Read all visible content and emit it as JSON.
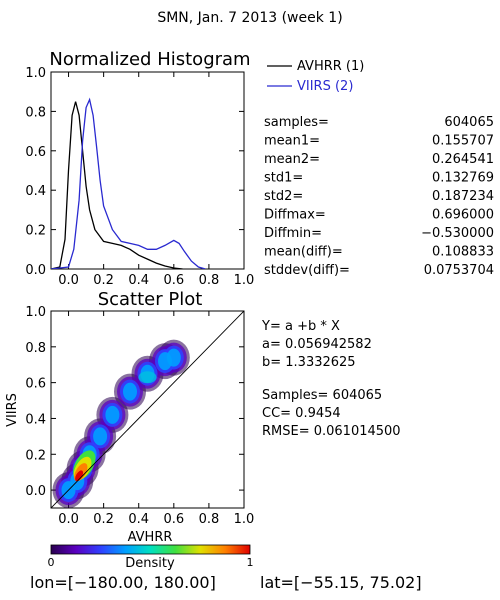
{
  "figure": {
    "title": "SMN,  Jan. 7 2013 (week 1)",
    "footer_lon": "lon=[−180.00, 180.00]",
    "footer_lat": "lat=[−55.15, 75.02]"
  },
  "histogram_legend": [
    {
      "label": "AVHRR (1)",
      "color": "#000000"
    },
    {
      "label": "VIIRS (2)",
      "color": "#2a2ad0"
    }
  ],
  "histogram_stats": [
    {
      "label": "samples=",
      "value": "604065"
    },
    {
      "label": "mean1=",
      "value": "0.155707"
    },
    {
      "label": "mean2=",
      "value": "0.264541"
    },
    {
      "label": "std1=",
      "value": "0.132769"
    },
    {
      "label": "std2=",
      "value": "0.187234"
    },
    {
      "label": "Diffmax=",
      "value": "0.696000"
    },
    {
      "label": "Diffmin=",
      "value": "−0.530000"
    },
    {
      "label": "mean(diff)=",
      "value": "0.108833"
    },
    {
      "label": "stddev(diff)=",
      "value": "0.0753704"
    }
  ],
  "scatter_stats": {
    "model": "Y=  a  +b  *  X",
    "a": "a=  0.056942582",
    "b": "b=  1.3332625",
    "samples": "Samples=  604065",
    "cc": "CC=    0.9454",
    "rmse": "RMSE=  0.061014500"
  },
  "colorbar": {
    "label": "Density",
    "min_label": "0",
    "max_label": "1",
    "colors": [
      "#2a0050",
      "#5a00c0",
      "#3040ff",
      "#00a0ff",
      "#00e0c0",
      "#40e040",
      "#e0e000",
      "#ff8000",
      "#e00000"
    ]
  },
  "chart_data": [
    {
      "type": "line",
      "title": "Normalized Histogram",
      "xlim": [
        -0.1,
        1.0
      ],
      "ylim": [
        0.0,
        1.0
      ],
      "x_ticks": [
        "0.0",
        "0.2",
        "0.4",
        "0.6",
        "0.8",
        "1.0"
      ],
      "y_ticks": [
        "0.0",
        "0.2",
        "0.4",
        "0.6",
        "0.8",
        "1.0"
      ],
      "series": [
        {
          "name": "AVHRR (1)",
          "color": "#000000",
          "points": [
            [
              -0.1,
              0.0
            ],
            [
              -0.05,
              0.01
            ],
            [
              -0.02,
              0.15
            ],
            [
              0.0,
              0.5
            ],
            [
              0.02,
              0.78
            ],
            [
              0.04,
              0.85
            ],
            [
              0.06,
              0.78
            ],
            [
              0.08,
              0.6
            ],
            [
              0.1,
              0.42
            ],
            [
              0.12,
              0.3
            ],
            [
              0.15,
              0.2
            ],
            [
              0.2,
              0.14
            ],
            [
              0.25,
              0.13
            ],
            [
              0.3,
              0.12
            ],
            [
              0.35,
              0.1
            ],
            [
              0.4,
              0.07
            ],
            [
              0.45,
              0.05
            ],
            [
              0.5,
              0.03
            ],
            [
              0.55,
              0.015
            ],
            [
              0.6,
              0.005
            ],
            [
              0.65,
              0.0
            ]
          ]
        },
        {
          "name": "VIIRS (2)",
          "color": "#2a2ad0",
          "points": [
            [
              -0.1,
              0.0
            ],
            [
              0.0,
              0.01
            ],
            [
              0.03,
              0.1
            ],
            [
              0.06,
              0.35
            ],
            [
              0.08,
              0.65
            ],
            [
              0.1,
              0.82
            ],
            [
              0.12,
              0.86
            ],
            [
              0.14,
              0.78
            ],
            [
              0.16,
              0.62
            ],
            [
              0.18,
              0.45
            ],
            [
              0.2,
              0.32
            ],
            [
              0.25,
              0.2
            ],
            [
              0.3,
              0.14
            ],
            [
              0.35,
              0.13
            ],
            [
              0.4,
              0.12
            ],
            [
              0.45,
              0.1
            ],
            [
              0.5,
              0.1
            ],
            [
              0.55,
              0.12
            ],
            [
              0.6,
              0.145
            ],
            [
              0.63,
              0.13
            ],
            [
              0.66,
              0.09
            ],
            [
              0.7,
              0.04
            ],
            [
              0.74,
              0.01
            ],
            [
              0.78,
              0.0
            ]
          ]
        }
      ]
    },
    {
      "type": "heatmap",
      "title": "Scatter Plot",
      "xlabel": "AVHRR",
      "ylabel": "VIIRS",
      "xlim": [
        -0.1,
        1.0
      ],
      "ylim": [
        -0.1,
        1.0
      ],
      "x_ticks": [
        "0.0",
        "0.2",
        "0.4",
        "0.6",
        "0.8",
        "1.0"
      ],
      "y_ticks": [
        "0.0",
        "0.2",
        "0.4",
        "0.6",
        "0.8",
        "1.0"
      ],
      "diagonal": [
        [
          -0.1,
          -0.1
        ],
        [
          1.0,
          1.0
        ]
      ],
      "density_ridge": [
        [
          0.0,
          0.0
        ],
        [
          0.05,
          0.05
        ],
        [
          0.08,
          0.12
        ],
        [
          0.12,
          0.2
        ],
        [
          0.18,
          0.3
        ],
        [
          0.25,
          0.42
        ],
        [
          0.35,
          0.55
        ],
        [
          0.45,
          0.65
        ],
        [
          0.55,
          0.72
        ],
        [
          0.6,
          0.74
        ]
      ],
      "regression": {
        "a": 0.056942582,
        "b": 1.3332625
      }
    }
  ]
}
